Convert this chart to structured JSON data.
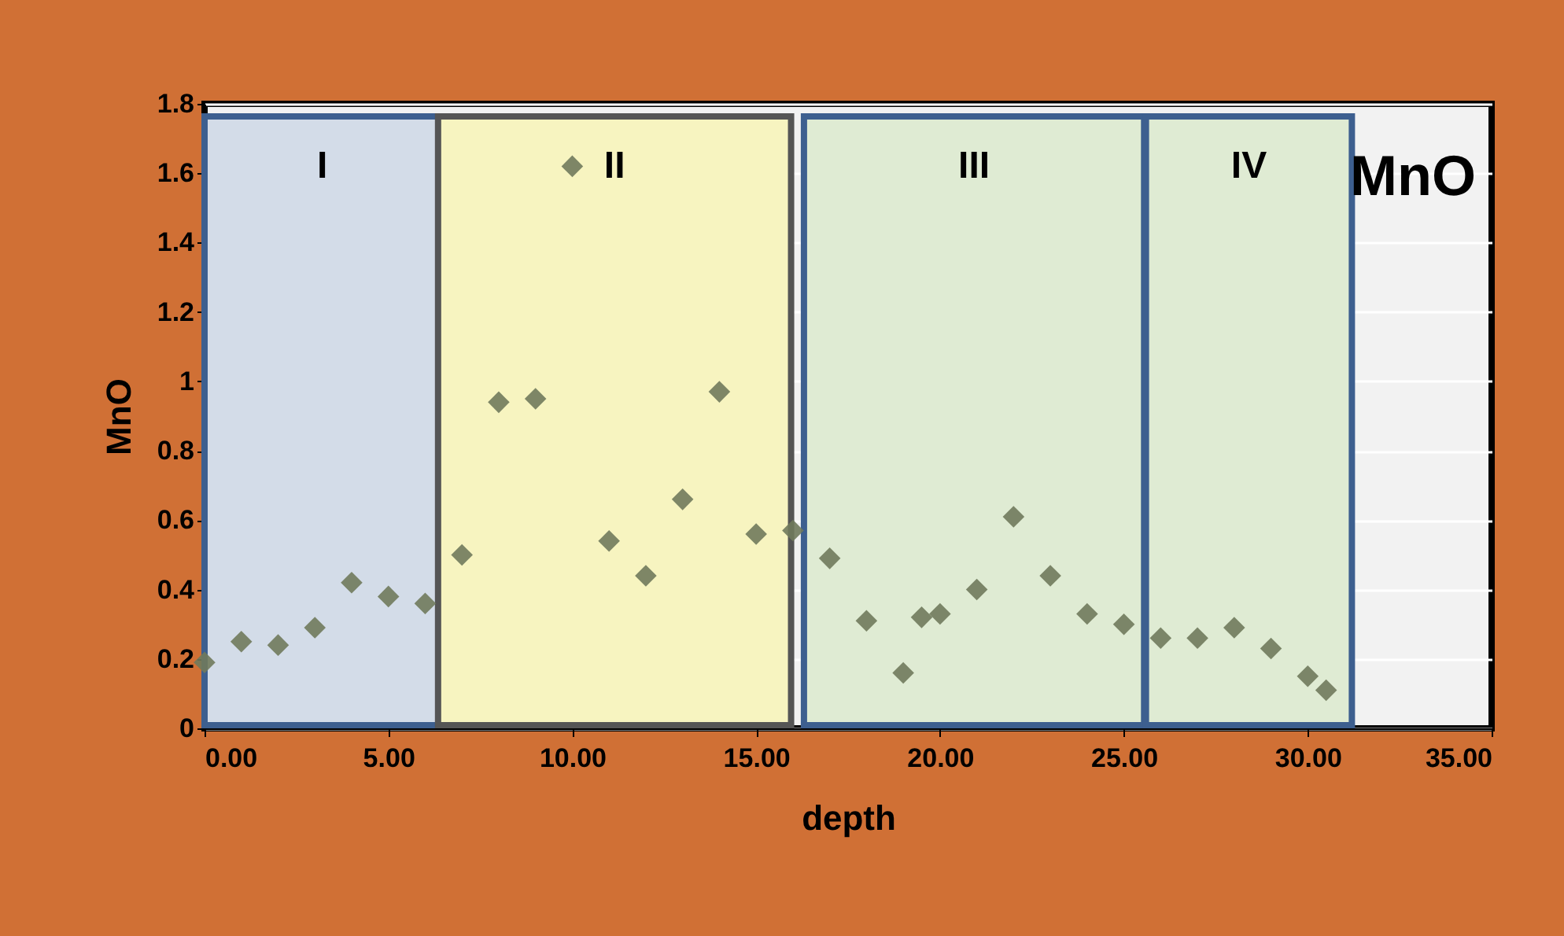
{
  "chart_data": {
    "type": "scatter",
    "xlabel": "depth",
    "ylabel": "MnO",
    "annotations": [
      "MnO"
    ],
    "x": [
      0,
      1,
      2,
      3,
      4,
      5,
      6,
      7,
      8,
      9,
      10,
      11,
      12,
      13,
      14,
      15,
      16,
      17,
      18,
      19,
      19.5,
      20,
      21,
      22,
      23,
      24,
      25,
      26,
      27,
      28,
      29,
      30,
      30.5
    ],
    "series": [
      {
        "color": "#707a5c",
        "values": [
          0.19,
          0.25,
          0.24,
          0.29,
          0.42,
          0.38,
          0.36,
          0.5,
          0.94,
          0.95,
          1.62,
          0.54,
          0.44,
          0.66,
          0.97,
          0.56,
          0.57,
          0.49,
          0.31,
          0.16,
          0.32,
          0.33,
          0.4,
          0.61,
          0.44,
          0.33,
          0.3,
          0.26,
          0.26,
          0.29,
          0.23,
          0.15,
          0.11
        ]
      }
    ],
    "marker": "diamond",
    "grid": "y",
    "xlim": [
      0,
      35
    ],
    "xticks": [
      {
        "value": 0,
        "label": "0.00"
      },
      {
        "value": 5,
        "label": "5.00"
      },
      {
        "value": 10,
        "label": "10.00"
      },
      {
        "value": 15,
        "label": "15.00"
      },
      {
        "value": 20,
        "label": "20.00"
      },
      {
        "value": 25,
        "label": "25.00"
      },
      {
        "value": 30,
        "label": "30.00"
      },
      {
        "value": 35,
        "label": "35.00"
      }
    ],
    "ylim": [
      0,
      1.8
    ],
    "yticks": [
      0,
      0.2,
      0.4,
      0.6,
      0.8,
      1,
      1.2,
      1.4,
      1.6,
      1.8
    ],
    "bands": [
      {
        "axis": "x",
        "from": 0,
        "to": 6.4,
        "label": "I",
        "color": "#d3dce8"
      },
      {
        "axis": "x",
        "from": 6.35,
        "to": 15.95,
        "label": "II",
        "color": "#f7f4c0"
      },
      {
        "axis": "x",
        "from": 16.3,
        "to": 25.55,
        "label": "III",
        "color": "#dfebd3"
      },
      {
        "axis": "x",
        "from": 25.6,
        "to": 31.2,
        "label": "IV",
        "color": "#dfebd3"
      }
    ]
  }
}
